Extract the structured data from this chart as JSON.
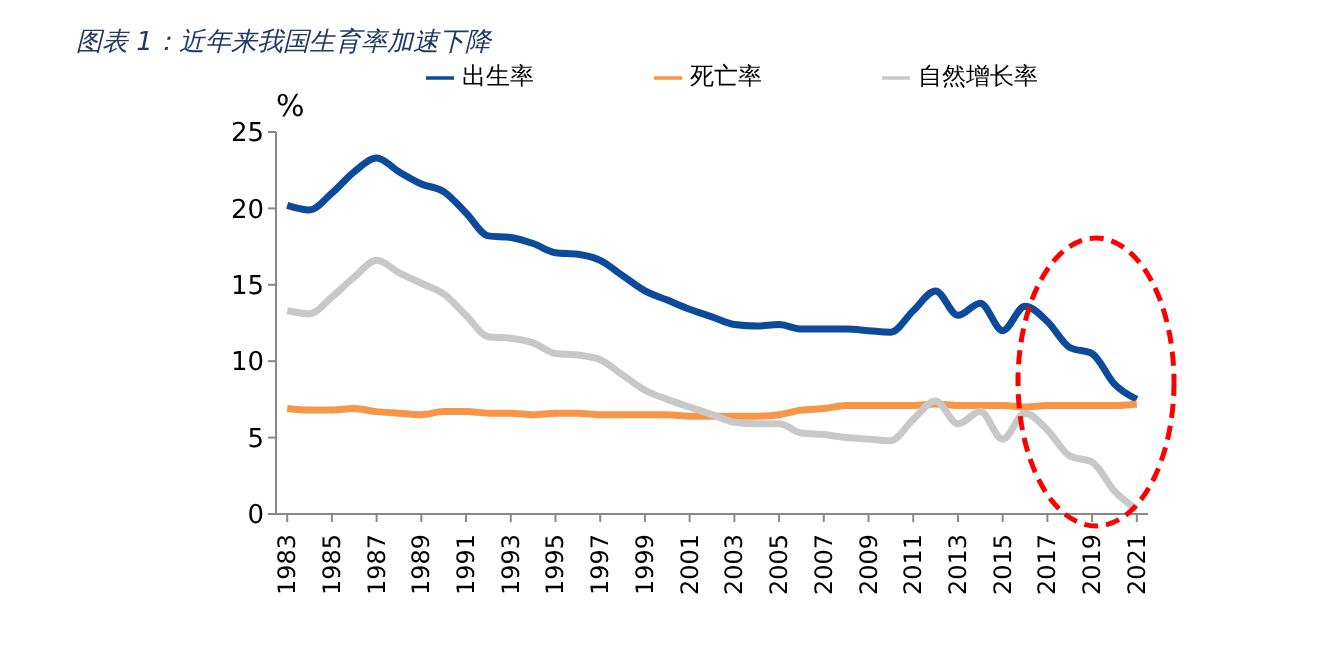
{
  "chart_data": {
    "type": "line",
    "title": "图表 1：近年来我国生育率加速下降",
    "ylabel": "%",
    "x": [
      1983,
      1984,
      1985,
      1986,
      1987,
      1988,
      1989,
      1990,
      1991,
      1992,
      1993,
      1994,
      1995,
      1996,
      1997,
      1998,
      1999,
      2000,
      2001,
      2002,
      2003,
      2004,
      2005,
      2006,
      2007,
      2008,
      2009,
      2010,
      2011,
      2012,
      2013,
      2014,
      2015,
      2016,
      2017,
      2018,
      2019,
      2020,
      2021
    ],
    "series": [
      {
        "name": "出生率",
        "color": "#0c4a9c",
        "values": [
          20.2,
          19.9,
          21.0,
          22.4,
          23.3,
          22.4,
          21.6,
          21.1,
          19.7,
          18.2,
          18.1,
          17.7,
          17.1,
          17.0,
          16.6,
          15.6,
          14.6,
          14.0,
          13.4,
          12.9,
          12.4,
          12.3,
          12.4,
          12.1,
          12.1,
          12.1,
          12.0,
          11.9,
          13.3,
          14.6,
          13.0,
          13.8,
          12.0,
          13.6,
          12.6,
          10.9,
          10.5,
          8.5,
          7.5
        ]
      },
      {
        "name": "死亡率",
        "color": "#f79646",
        "values": [
          6.9,
          6.8,
          6.8,
          6.9,
          6.7,
          6.6,
          6.5,
          6.7,
          6.7,
          6.6,
          6.6,
          6.5,
          6.6,
          6.6,
          6.5,
          6.5,
          6.5,
          6.5,
          6.4,
          6.4,
          6.4,
          6.4,
          6.5,
          6.8,
          6.9,
          7.1,
          7.1,
          7.1,
          7.1,
          7.2,
          7.1,
          7.1,
          7.1,
          7.0,
          7.1,
          7.1,
          7.1,
          7.1,
          7.2
        ]
      },
      {
        "name": "自然增长率",
        "color": "#c8c8c8",
        "values": [
          13.3,
          13.1,
          14.2,
          15.5,
          16.6,
          15.8,
          15.1,
          14.4,
          13.0,
          11.6,
          11.5,
          11.2,
          10.5,
          10.4,
          10.1,
          9.1,
          8.1,
          7.5,
          7.0,
          6.5,
          6.0,
          5.9,
          5.9,
          5.3,
          5.2,
          5.0,
          4.9,
          4.8,
          6.2,
          7.4,
          5.9,
          6.7,
          4.9,
          6.6,
          5.5,
          3.8,
          3.4,
          1.5,
          0.3
        ]
      }
    ],
    "xlim": [
      1982.5,
      2021.5
    ],
    "xticks": [
      1983,
      1985,
      1987,
      1989,
      1991,
      1993,
      1995,
      1997,
      1999,
      2001,
      2003,
      2005,
      2007,
      2009,
      2011,
      2013,
      2015,
      2017,
      2019,
      2021
    ],
    "ylim": [
      0,
      25
    ],
    "yticks": [
      0,
      5,
      10,
      15,
      20,
      25
    ],
    "grid": false,
    "legend": "top",
    "marker": "none",
    "line_style": "solid"
  }
}
